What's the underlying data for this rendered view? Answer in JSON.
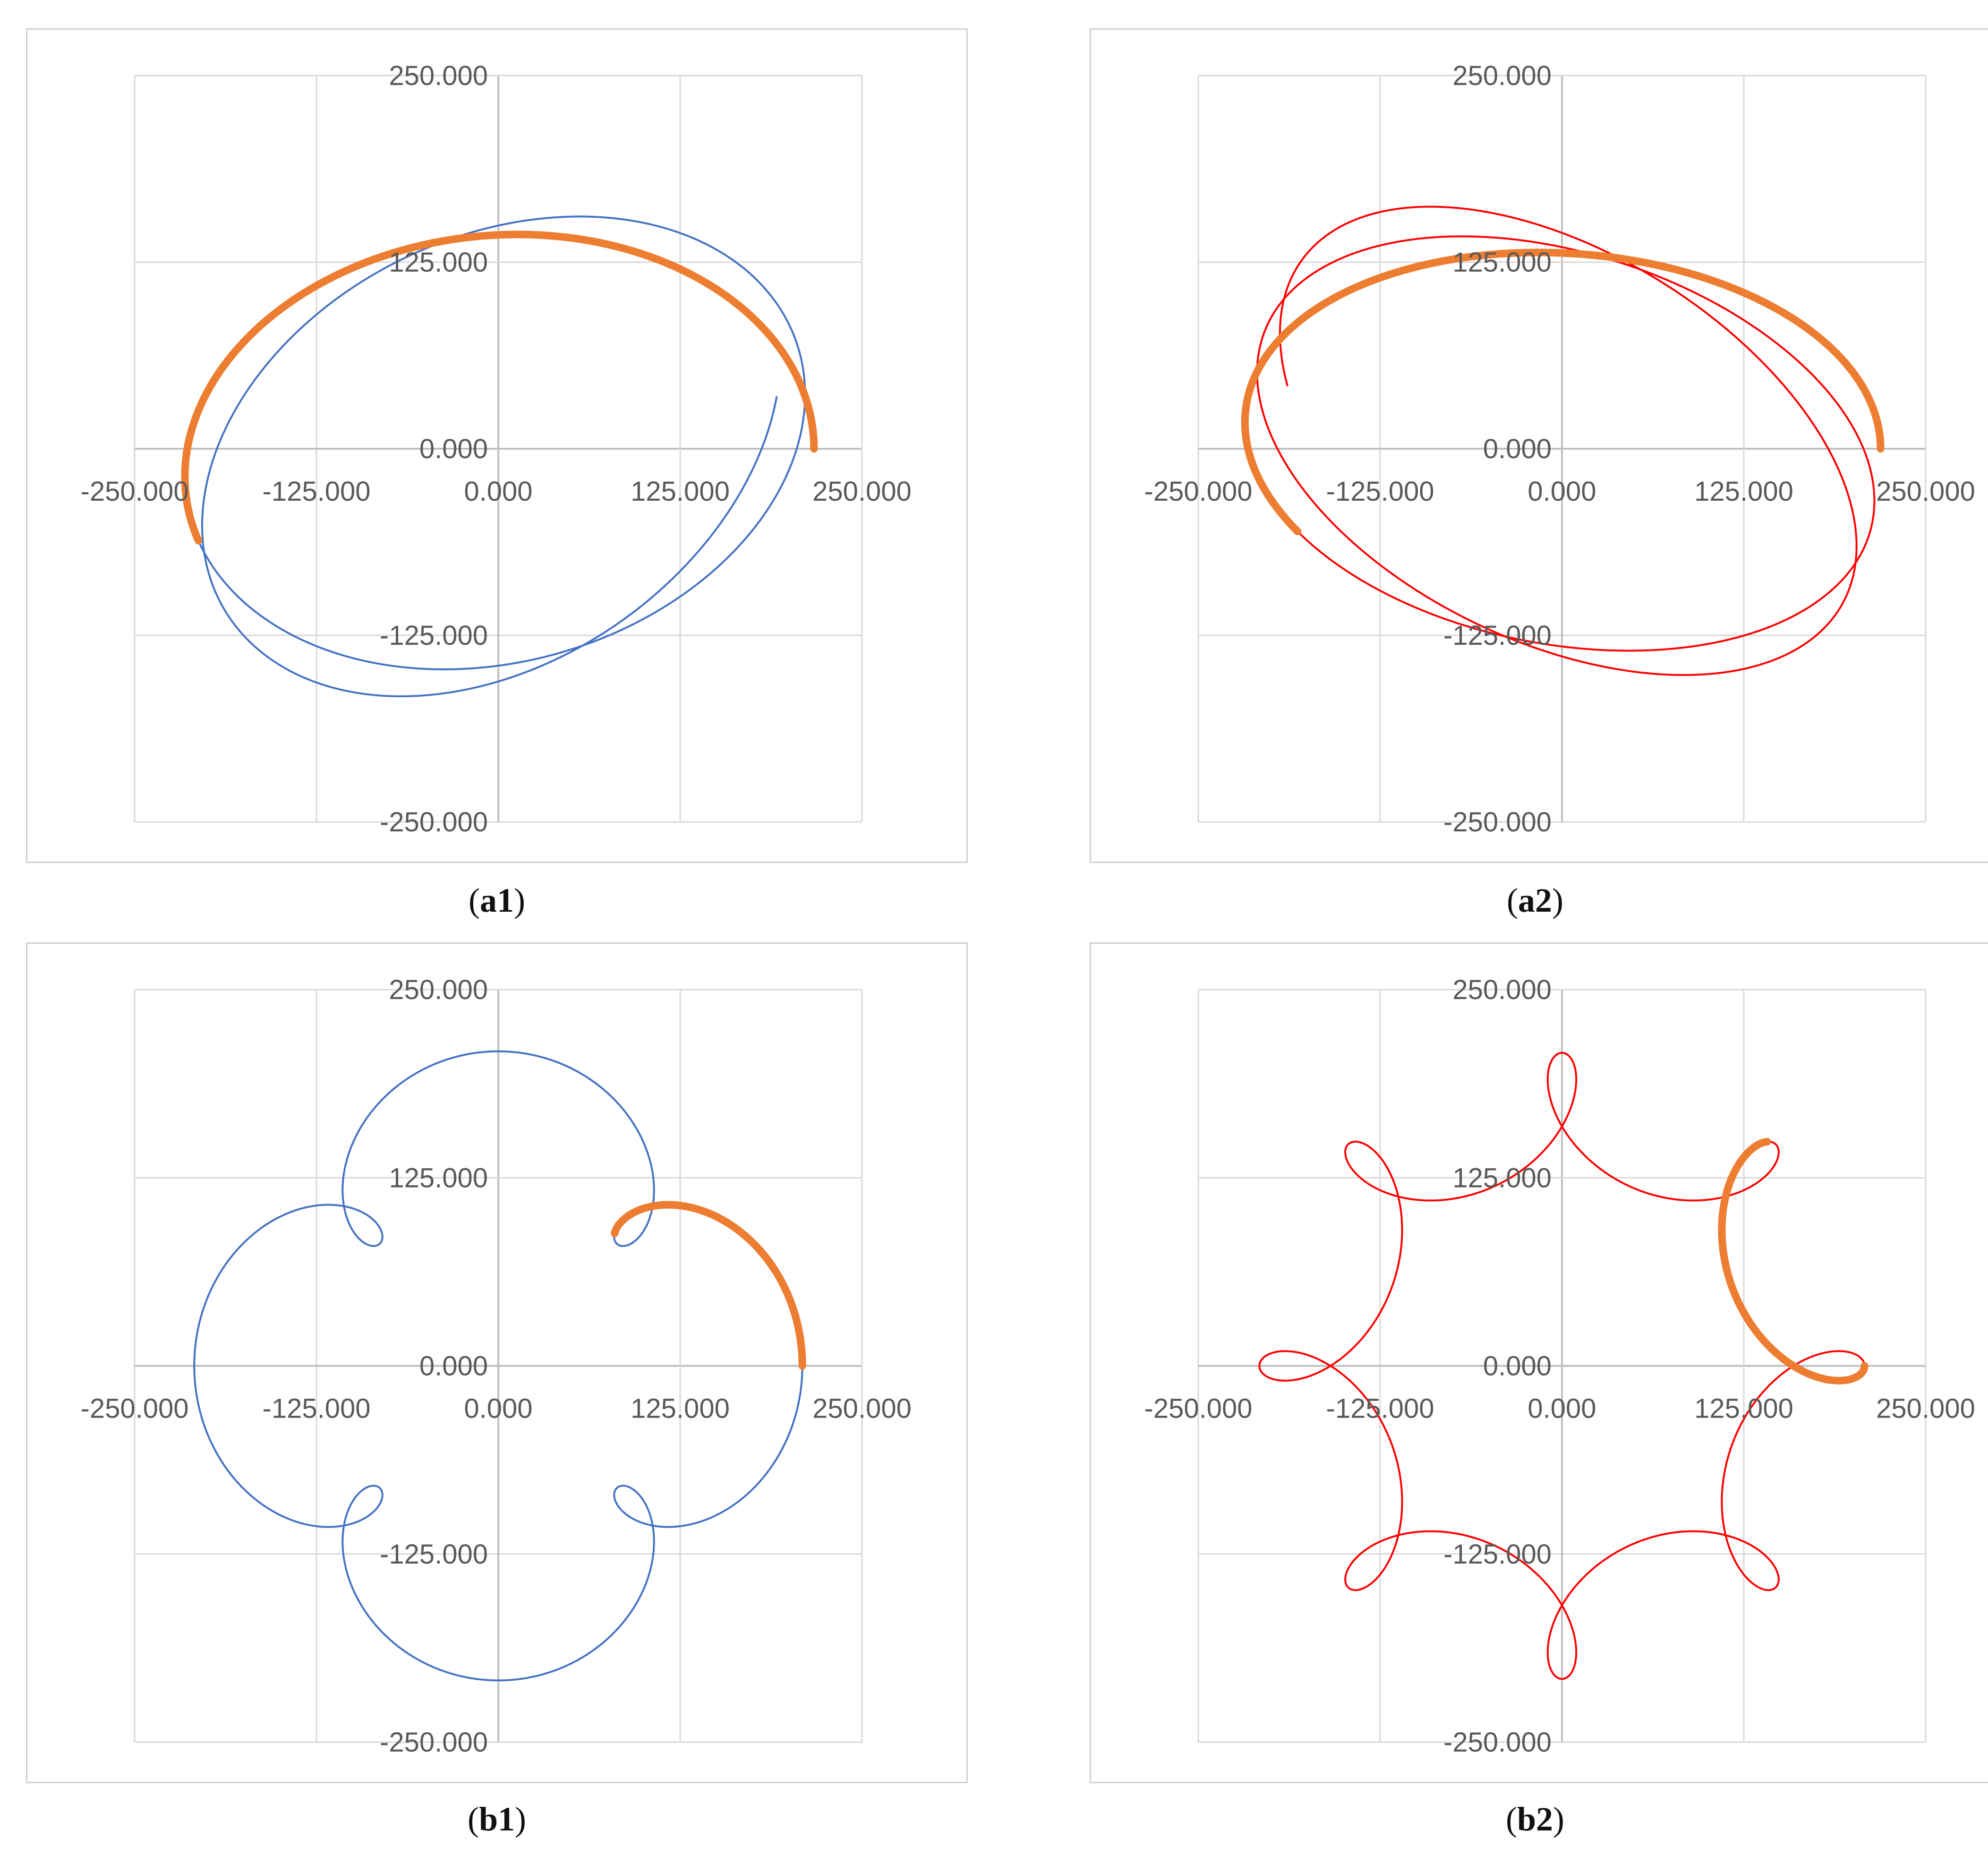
{
  "chart_data": [
    {
      "panel": "a1",
      "type": "line",
      "title": "",
      "xlabel": "",
      "ylabel": "",
      "xlim": [
        -250,
        250
      ],
      "ylim": [
        -250,
        250
      ],
      "grid": true,
      "x_ticks": [
        "-250.000",
        "-125.000",
        "0.000",
        "125.000",
        "250.000"
      ],
      "y_ticks": [
        "250.000",
        "125.000",
        "0.000",
        "-125.000",
        "-250.000"
      ],
      "trajectory": {
        "kind": "epicycle",
        "R": 180,
        "r": 37,
        "omega": -0.9,
        "turns": 2,
        "color": "#4472C4"
      },
      "highlight": {
        "kind": "epicycle",
        "R": 180,
        "r": 37,
        "omega": -0.9,
        "t_end_deg": 200,
        "color": "#ED7D31"
      }
    },
    {
      "panel": "a2",
      "type": "line",
      "title": "",
      "xlabel": "",
      "ylabel": "",
      "xlim": [
        -250,
        250
      ],
      "ylim": [
        -250,
        250
      ],
      "grid": true,
      "x_ticks": [
        "-250.000",
        "-125.000",
        "0.000",
        "125.000",
        "250.000"
      ],
      "y_ticks": [
        "250.000",
        "125.000",
        "0.000",
        "-125.000",
        "-250.000"
      ],
      "trajectory": {
        "kind": "epicycle",
        "R": 175,
        "r": 44,
        "omega": -1.08,
        "turns": 2.5,
        "color": "#FF0000"
      },
      "highlight": {
        "kind": "epicycle",
        "R": 175,
        "r": 44,
        "omega": -1.08,
        "t_end_deg": 210,
        "color": "#ED7D31"
      }
    },
    {
      "panel": "b1",
      "type": "line",
      "title": "",
      "xlabel": "",
      "ylabel": "",
      "xlim": [
        -250,
        250
      ],
      "ylim": [
        -250,
        250
      ],
      "grid": true,
      "x_ticks": [
        "-250.000",
        "-125.000",
        "0.000",
        "125.000",
        "250.000"
      ],
      "y_ticks": [
        "250.000",
        "125.000",
        "0.000",
        "-125.000",
        "-250.000"
      ],
      "trajectory": {
        "kind": "epicycle",
        "R": 162,
        "r": 47,
        "omega": 5,
        "turns": 1,
        "color": "#4472C4"
      },
      "highlight": {
        "kind": "epicycle",
        "R": 162,
        "r": 47,
        "omega": 5,
        "t_end_deg": 40,
        "color": "#ED7D31"
      }
    },
    {
      "panel": "b2",
      "type": "line",
      "title": "",
      "xlabel": "",
      "ylabel": "",
      "xlim": [
        -250,
        250
      ],
      "ylim": [
        -250,
        250
      ],
      "grid": true,
      "x_ticks": [
        "-250.000",
        "-125.000",
        "0.000",
        "125.000",
        "250.000"
      ],
      "y_ticks": [
        "250.000",
        "125.000",
        "0.000",
        "-125.000",
        "-250.000"
      ],
      "trajectory": {
        "kind": "epicycle",
        "R": 168,
        "r": 40,
        "omega": -7,
        "turns": 1,
        "color": "#FF0000"
      },
      "highlight": {
        "kind": "epicycle",
        "R": 168,
        "r": 40,
        "omega": -7,
        "t_end_deg": 42,
        "color": "#ED7D31"
      }
    }
  ],
  "captions": {
    "a1": {
      "open": "(",
      "label": "a1",
      "close": ")"
    },
    "a2": {
      "open": "(",
      "label": "a2",
      "close": ")"
    },
    "b1": {
      "open": "(",
      "label": "b1",
      "close": ")"
    },
    "b2": {
      "open": "(",
      "label": "b2",
      "close": ")"
    }
  },
  "colors": {
    "grid": "#D9D9D9",
    "axis": "#BFBFBF",
    "border": "#D0D0D0",
    "tick_text": "#595959"
  }
}
